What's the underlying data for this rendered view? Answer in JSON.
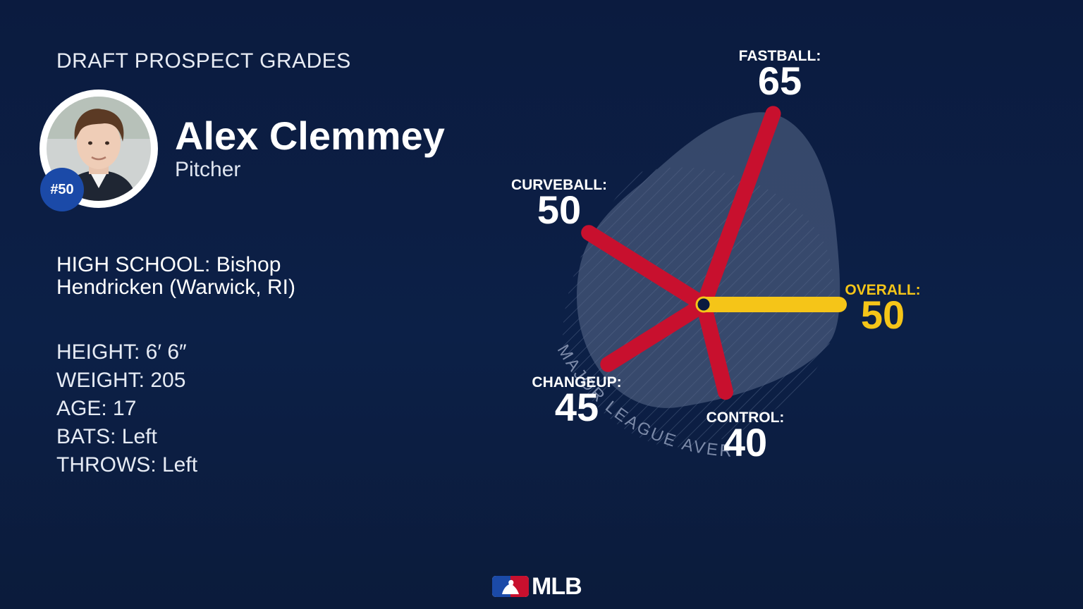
{
  "header": {
    "title": "DRAFT PROSPECT GRADES"
  },
  "player": {
    "name": "Alex Clemmey",
    "position": "Pitcher",
    "rank": "#50",
    "school": "HIGH SCHOOL: Bishop Hendricken (Warwick, RI)",
    "stats": [
      "HEIGHT: 6′ 6″",
      "WEIGHT: 205",
      "AGE: 17",
      "BATS: Left",
      "THROWS: Left"
    ]
  },
  "colors": {
    "background": "#0b1b3f",
    "tool_bar": "#c8102e",
    "overall_bar": "#f5c518",
    "badge": "#1b4aa8"
  },
  "chart_data": {
    "type": "radar",
    "scale": [
      20,
      80
    ],
    "reference_label": "MAJOR LEAGUE AVERAGE",
    "grades": [
      {
        "key": "fastball",
        "label": "FASTBALL:",
        "value": 65
      },
      {
        "key": "curveball",
        "label": "CURVEBALL:",
        "value": 50
      },
      {
        "key": "changeup",
        "label": "CHANGEUP:",
        "value": 45
      },
      {
        "key": "control",
        "label": "CONTROL:",
        "value": 40
      }
    ],
    "overall": {
      "label": "OVERALL:",
      "value": 50
    }
  },
  "footer": {
    "logo_text": "MLB",
    "logo_icon": "mlb-batter-logo-icon"
  }
}
